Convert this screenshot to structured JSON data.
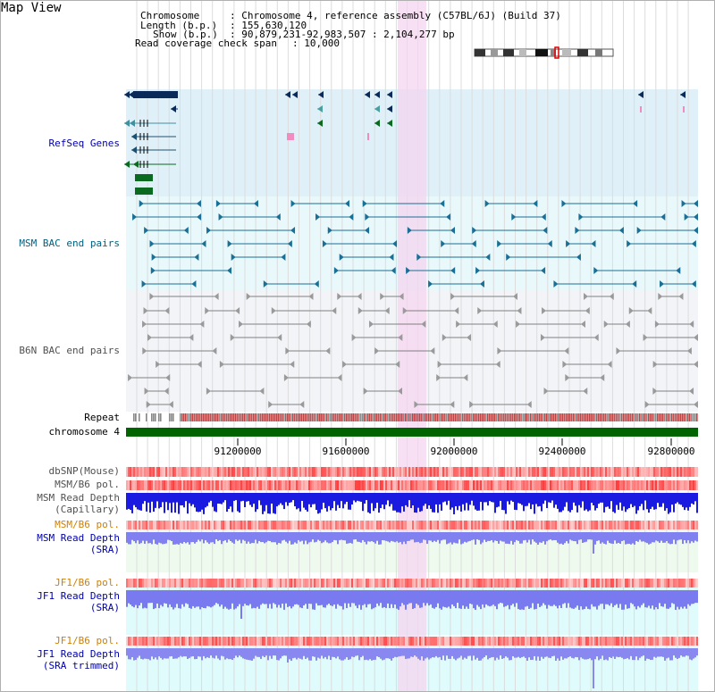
{
  "header": {
    "view_title": "Map View",
    "rows": [
      {
        "key": "Chromosome",
        "value": "Chromosome 4, reference assembly (C57BL/6J) (Build 37)"
      },
      {
        "key": "Length (b.p.)",
        "value": "155,630,120"
      },
      {
        "key": "Show (b.p.)",
        "value": "90,879,231-92,983,507 : 2,104,277 bp"
      },
      {
        "key": "Read coverage check span",
        "value": "10,000"
      }
    ]
  },
  "tracks": {
    "refseq": "RefSeq Genes",
    "msm_bac": "MSM BAC end pairs",
    "b6n_bac": "B6N BAC end pairs",
    "repeat": "Repeat",
    "chromosome": "chromosome 4",
    "dbsnp": "dbSNP(Mouse)",
    "msm_b6_pol_1": "MSM/B6 pol.",
    "msm_depth_cap_1": "MSM Read Depth",
    "msm_depth_cap_2": "(Capillary)",
    "msm_b6_pol_2": "MSM/B6 pol.",
    "msm_depth_sra_1": "MSM Read Depth",
    "msm_depth_sra_2": "(SRA)",
    "jf1_b6_pol_1": "JF1/B6 pol.",
    "jf1_depth_sra_1": "JF1 Read Depth",
    "jf1_depth_sra_2": "(SRA)",
    "jf1_b6_pol_2": "JF1/B6 pol.",
    "jf1_depth_trim_1": "JF1 Read Depth",
    "jf1_depth_trim_2": "(SRA trimmed)"
  },
  "axis": {
    "ticks": [
      "91200000",
      "91600000",
      "92000000",
      "92400000",
      "92800000"
    ]
  },
  "colors": {
    "refseq_bg": "#dff0f8",
    "msm_bg": "#e8f8fb",
    "b6n_bg": "#f2f4f8",
    "lower_bg": "#e0fbfb",
    "highlight": "#f5d5f0",
    "gene_navy": "#0a2a5a",
    "gene_green": "#0a6a20",
    "msm_line": "#1a6f96",
    "b6n_line": "#808080",
    "chromosome_bar": "#006400",
    "label_blue": "#0000aa",
    "label_teal": "#006080",
    "label_orange": "#d08000",
    "label_gray": "#505050"
  }
}
